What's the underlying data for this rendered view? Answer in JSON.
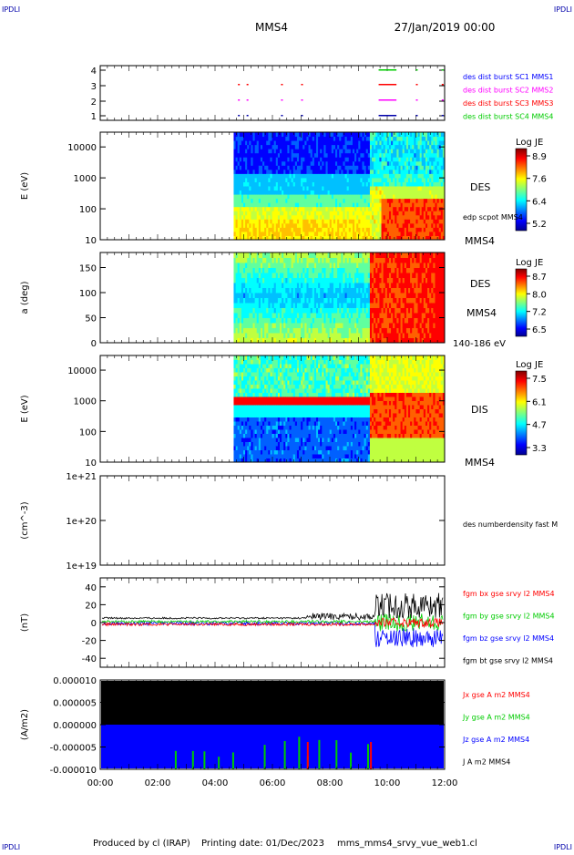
{
  "header": {
    "corner_left": "IPDLI",
    "corner_right": "IPDLI",
    "spacecraft": "MMS4",
    "datetime": "27/Jan/2019 00:00"
  },
  "footer": {
    "producer": "Produced by cl (IRAP)",
    "printing_date": "Printing date: 01/Dec/2023",
    "filename": "mms_mms4_srvy_vue_web1.cl",
    "corner_left": "IPDLI",
    "corner_right": "IPDLI"
  },
  "colors": {
    "c_blue": "#0000ff",
    "c_magenta": "#ff00ff",
    "c_red": "#ff0000",
    "c_green": "#00cc00",
    "c_black": "#000000",
    "c_navy": "#0000aa"
  },
  "x_axis": {
    "range_hours": [
      0,
      12
    ],
    "tick_labels": [
      "00:00",
      "02:00",
      "04:00",
      "06:00",
      "08:00",
      "10:00",
      "12:00"
    ]
  },
  "chart_data": [
    {
      "type": "scatter",
      "panel": "burst_availability",
      "yticks": [
        "1",
        "2",
        "3",
        "4"
      ],
      "legend": [
        "des dist burst SC1 MMS1",
        "des dist burst SC2 MMS2",
        "des dist burst SC3 MMS3",
        "des dist burst SC4 MMS4"
      ],
      "bursts_hours": [
        4.8,
        5.1,
        6.3,
        7.0,
        9.7,
        9.9,
        10.1,
        11.0,
        11.9
      ]
    },
    {
      "type": "heatmap",
      "panel": "des_energy",
      "ylabel": "E (eV)",
      "scale": "log",
      "ylim": [
        10,
        30000
      ],
      "yticks": [
        "10",
        "100",
        "1000",
        "10000"
      ],
      "colorbar_title": "Log JE",
      "colorbar_ticks": [
        "8.9",
        "7.6",
        "6.4",
        "5.2"
      ],
      "labels": [
        "DES",
        "edp scpot MMS4",
        "MMS4"
      ],
      "data_start_hours": 4.65
    },
    {
      "type": "heatmap",
      "panel": "des_pitch",
      "ylabel": "a (deg)",
      "ylim": [
        0,
        180
      ],
      "yticks": [
        "0",
        "50",
        "100",
        "150"
      ],
      "colorbar_title": "Log JE",
      "colorbar_ticks": [
        "8.7",
        "8.0",
        "7.2",
        "6.5"
      ],
      "labels": [
        "DES",
        "MMS4",
        "140-186 eV"
      ],
      "data_start_hours": 4.65
    },
    {
      "type": "heatmap",
      "panel": "dis_energy",
      "ylabel": "E (eV)",
      "scale": "log",
      "ylim": [
        10,
        30000
      ],
      "yticks": [
        "10",
        "100",
        "1000",
        "10000"
      ],
      "colorbar_title": "Log JE",
      "colorbar_ticks": [
        "7.5",
        "6.1",
        "4.7",
        "3.3"
      ],
      "labels": [
        "DIS",
        "MMS4"
      ],
      "data_start_hours": 4.65
    },
    {
      "type": "line",
      "panel": "density",
      "ylabel": "(cm^-3)",
      "scale": "log",
      "yticks": [
        "1e+19",
        "1e+20",
        "1e+21"
      ],
      "legend": [
        "des numberdensity fast M"
      ]
    },
    {
      "type": "line",
      "panel": "magnetic_field",
      "ylabel": "(nT)",
      "ylim": [
        -50,
        50
      ],
      "yticks": [
        "-40",
        "-20",
        "0",
        "20",
        "40"
      ],
      "series": [
        {
          "name": "fgm bx gse srvy l2 MMS4"
        },
        {
          "name": "fgm by gse srvy l2 MMS4"
        },
        {
          "name": "fgm bz gse srvy l2 MMS4"
        },
        {
          "name": "fgm bt gse srvy l2 MMS4"
        }
      ]
    },
    {
      "type": "area",
      "panel": "current_density",
      "ylabel": "(A/m2)",
      "ylim": [
        -1e-05,
        1e-05
      ],
      "yticks": [
        "0.000010",
        "0.000005",
        "0.000000",
        "-0.000005",
        "-0.000010"
      ],
      "series": [
        {
          "name": "Jx gse A m2 MMS4"
        },
        {
          "name": "Jy gse A m2 MMS4"
        },
        {
          "name": "Jz gse A m2 MMS4"
        },
        {
          "name": "J A m2 MMS4"
        }
      ]
    }
  ]
}
